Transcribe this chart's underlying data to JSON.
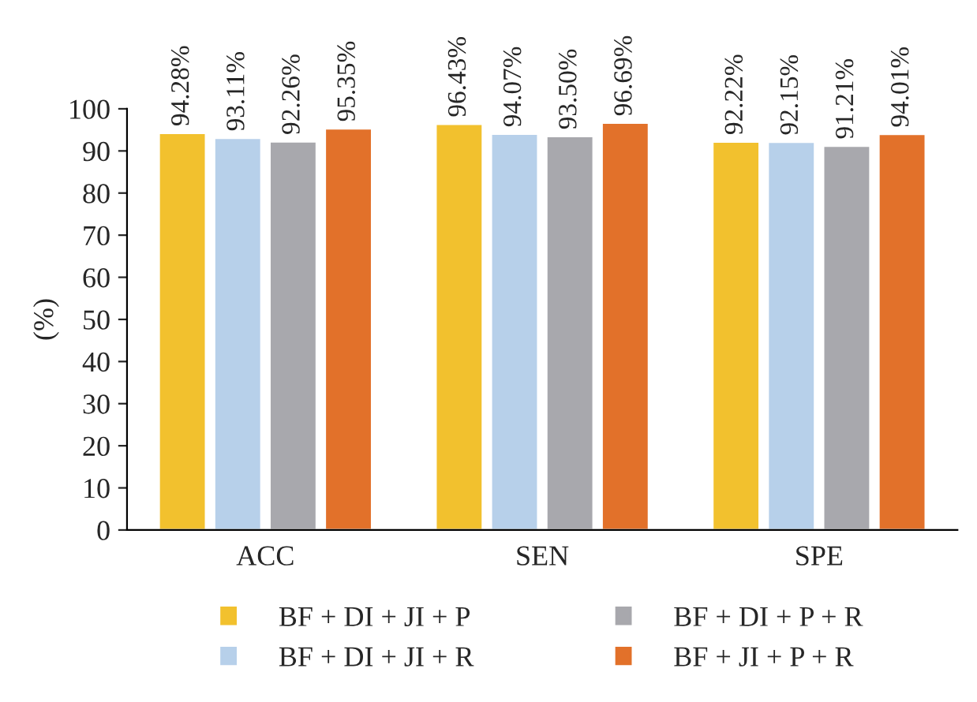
{
  "chart_data": {
    "type": "bar",
    "ylabel": "(%)",
    "categories": [
      "ACC",
      "SEN",
      "SPE"
    ],
    "series": [
      {
        "name": "BF + DI + JI + P",
        "color": "#f2c12e",
        "values": [
          94.28,
          96.43,
          92.22
        ],
        "value_labels": [
          "94.28%",
          "96.43%",
          "92.22%"
        ]
      },
      {
        "name": "BF + DI + JI + R",
        "color": "#b7d0ea",
        "values": [
          93.11,
          94.07,
          92.15
        ],
        "value_labels": [
          "93.11%",
          "94.07%",
          "92.15%"
        ]
      },
      {
        "name": "BF + DI + P + R",
        "color": "#a8a8ad",
        "values": [
          92.26,
          93.5,
          91.21
        ],
        "value_labels": [
          "92.26%",
          "93.50%",
          "91.21%"
        ]
      },
      {
        "name": "BF + JI + P + R",
        "color": "#e2712a",
        "values": [
          95.35,
          96.69,
          94.01
        ],
        "value_labels": [
          "95.35%",
          "96.69%",
          "94.01%"
        ]
      }
    ],
    "ylim": [
      0,
      100
    ],
    "yticks": [
      0,
      10,
      20,
      30,
      40,
      50,
      60,
      70,
      80,
      90,
      100
    ],
    "grid": false,
    "legend": "bottom"
  }
}
